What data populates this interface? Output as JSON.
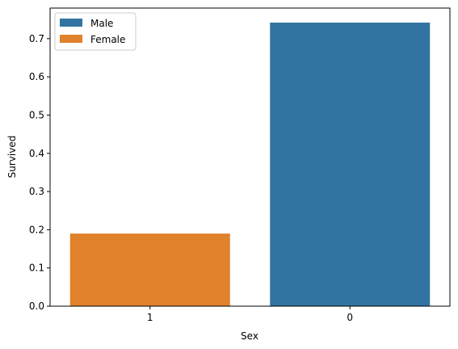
{
  "chart_data": {
    "type": "bar",
    "xlabel": "Sex",
    "ylabel": "Survived",
    "categories": [
      "1",
      "0"
    ],
    "values": [
      0.19,
      0.742
    ],
    "bar_series": [
      "Female",
      "Male"
    ],
    "ylim": [
      0,
      0.78
    ],
    "yticks": [
      "0.0",
      "0.1",
      "0.2",
      "0.3",
      "0.4",
      "0.5",
      "0.6",
      "0.7"
    ],
    "grid": false,
    "legend": {
      "position": "top-left",
      "entries": [
        {
          "name": "Male",
          "color": "#3274a1"
        },
        {
          "name": "Female",
          "color": "#e1812c"
        }
      ]
    },
    "colors": {
      "Male": "#3274a1",
      "Female": "#e1812c"
    }
  }
}
